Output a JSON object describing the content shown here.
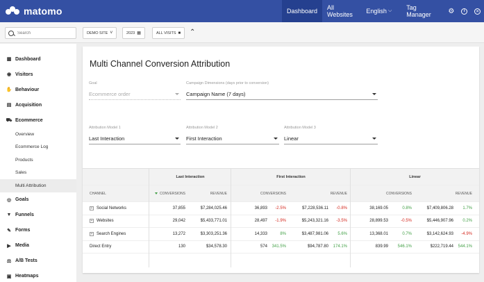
{
  "brand": {
    "name": "matomo",
    "color": "#3450a3"
  },
  "topnav": {
    "items": [
      {
        "label": "Dashboard",
        "active": true
      },
      {
        "label": "All Websites"
      },
      {
        "label": "English"
      },
      {
        "label": "Tag Manager"
      }
    ],
    "icons": [
      "gear-icon",
      "info-icon",
      "logout-icon"
    ]
  },
  "toolbar": {
    "search_placeholder": "Search",
    "site": "DEMO SITE",
    "period": "2023",
    "segment": "ALL VISITS"
  },
  "sidebar": {
    "items": [
      {
        "label": "Dashboard",
        "icon": "dashboard-icon"
      },
      {
        "label": "Visitors",
        "icon": "visitors-icon"
      },
      {
        "label": "Behaviour",
        "icon": "behaviour-icon"
      },
      {
        "label": "Acquisition",
        "icon": "acquisition-icon"
      },
      {
        "label": "Ecommerce",
        "icon": "ecommerce-icon",
        "children": [
          "Overview",
          "Ecommerce Log",
          "Products",
          "Sales",
          "Multi Attribution"
        ],
        "active_child": "Multi Attribution"
      },
      {
        "label": "Goals",
        "icon": "goals-icon"
      },
      {
        "label": "Funnels",
        "icon": "funnels-icon"
      },
      {
        "label": "Forms",
        "icon": "forms-icon"
      },
      {
        "label": "Media",
        "icon": "media-icon"
      },
      {
        "label": "A/B Tests",
        "icon": "ab-tests-icon"
      },
      {
        "label": "Heatmaps",
        "icon": "heatmaps-icon"
      }
    ]
  },
  "report": {
    "title": "Multi Channel Conversion Attribution",
    "goal": {
      "label": "Goal",
      "value": "Ecommerce order"
    },
    "campaign": {
      "label": "Campaign Dimensions (days prior to conversion)",
      "value": "Campaign Name (7 days)"
    },
    "model1": {
      "label": "Attribution Model 1",
      "value": "Last Interaction"
    },
    "model2": {
      "label": "Attribution Model 2",
      "value": "First Interaction"
    },
    "model3": {
      "label": "Attribution Model 3",
      "value": "Linear"
    }
  },
  "table": {
    "groups": [
      "Last Interaction",
      "First Interaction",
      "Linear"
    ],
    "columns": {
      "channel": "CHANNEL",
      "conversions": "CONVERSIONS",
      "revenue": "REVENUE"
    },
    "rows": [
      {
        "channel": "Social Networks",
        "expandable": true,
        "li_conv": "37,855",
        "li_rev": "$7,284,025.46",
        "fi_conv": "36,893",
        "fi_conv_d": "-2.5%",
        "fi_rev": "$7,228,536.11",
        "fi_rev_d": "-0.8%",
        "ln_conv": "38,169.05",
        "ln_conv_d": "0.8%",
        "ln_rev": "$7,409,806.28",
        "ln_rev_d": "1.7%"
      },
      {
        "channel": "Websites",
        "expandable": true,
        "li_conv": "29,042",
        "li_rev": "$5,433,771.01",
        "fi_conv": "28,497",
        "fi_conv_d": "-1.9%",
        "fi_rev": "$5,243,321.16",
        "fi_rev_d": "-3.5%",
        "ln_conv": "28,899.53",
        "ln_conv_d": "-0.5%",
        "ln_rev": "$5,446,907.96",
        "ln_rev_d": "0.2%"
      },
      {
        "channel": "Search Engines",
        "expandable": true,
        "li_conv": "13,272",
        "li_rev": "$3,303,251.36",
        "fi_conv": "14,333",
        "fi_conv_d": "8%",
        "fi_rev": "$3,487,981.06",
        "fi_rev_d": "5.6%",
        "ln_conv": "13,368.01",
        "ln_conv_d": "0.7%",
        "ln_rev": "$3,142,624.93",
        "ln_rev_d": "-4.9%"
      },
      {
        "channel": "Direct Entry",
        "expandable": false,
        "li_conv": "130",
        "li_rev": "$34,578.30",
        "fi_conv": "574",
        "fi_conv_d": "341.5%",
        "fi_rev": "$94,787.80",
        "fi_rev_d": "174.1%",
        "ln_conv": "839.99",
        "ln_conv_d": "546.1%",
        "ln_rev": "$222,719.44",
        "ln_rev_d": "544.1%"
      }
    ]
  }
}
